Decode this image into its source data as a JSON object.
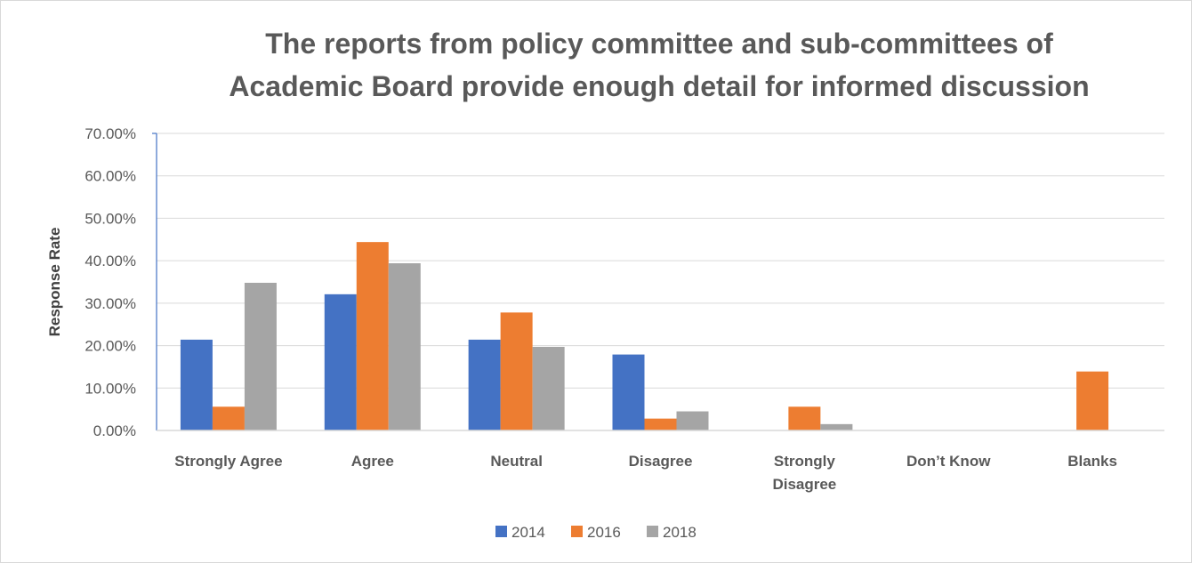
{
  "chart_data": {
    "type": "bar",
    "title_lines": [
      "The reports from policy committee and sub-committees of",
      "Academic Board provide enough detail for informed discussion"
    ],
    "xlabel": "",
    "ylabel": "Response Rate",
    "categories": [
      "Strongly Agree",
      "Agree",
      "Neutral",
      "Disagree",
      "Strongly Disagree",
      "Don’t Know",
      "Blanks"
    ],
    "category_lines": [
      [
        "Strongly Agree"
      ],
      [
        "Agree"
      ],
      [
        "Neutral"
      ],
      [
        "Disagree"
      ],
      [
        "Strongly",
        "Disagree"
      ],
      [
        "Don’t Know"
      ],
      [
        "Blanks"
      ]
    ],
    "series": [
      {
        "name": "2014",
        "color": "#4472c4",
        "values": [
          21.4,
          32.1,
          21.4,
          17.9,
          0,
          0,
          0
        ]
      },
      {
        "name": "2016",
        "color": "#ed7d31",
        "values": [
          5.6,
          44.4,
          27.8,
          2.8,
          5.6,
          0,
          13.9
        ]
      },
      {
        "name": "2018",
        "color": "#a5a5a5",
        "values": [
          34.8,
          39.4,
          19.7,
          4.5,
          1.5,
          0,
          0
        ]
      }
    ],
    "ylim": [
      0,
      70
    ],
    "yticks": [
      "0.00%",
      "10.00%",
      "20.00%",
      "30.00%",
      "40.00%",
      "50.00%",
      "60.00%",
      "70.00%"
    ],
    "grid": true,
    "legend_position": "bottom"
  }
}
